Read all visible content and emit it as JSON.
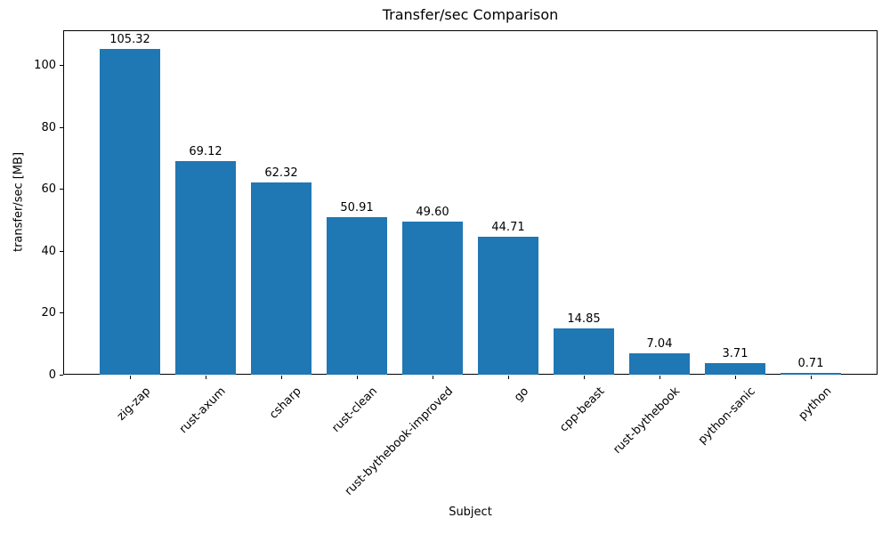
{
  "chart_data": {
    "type": "bar",
    "title": "Transfer/sec Comparison",
    "xlabel": "Subject",
    "ylabel": "transfer/sec [MB]",
    "categories": [
      "zig-zap",
      "rust-axum",
      "csharp",
      "rust-clean",
      "rust-bythebook-improved",
      "go",
      "cpp-beast",
      "rust-bythebook",
      "python-sanic",
      "python"
    ],
    "values": [
      105.32,
      69.12,
      62.32,
      50.91,
      49.6,
      44.71,
      14.85,
      7.04,
      3.71,
      0.71
    ],
    "value_labels": [
      "105.32",
      "69.12",
      "62.32",
      "50.91",
      "49.60",
      "44.71",
      "14.85",
      "7.04",
      "3.71",
      "0.71"
    ],
    "yticks": [
      0,
      20,
      40,
      60,
      80,
      100
    ],
    "ylim": [
      0,
      111.4
    ],
    "xtick_rotation": 45,
    "grid": false,
    "legend_position": "none",
    "bar_color": "#1f77b4",
    "text_color": "#000000",
    "background_color": "#ffffff"
  }
}
